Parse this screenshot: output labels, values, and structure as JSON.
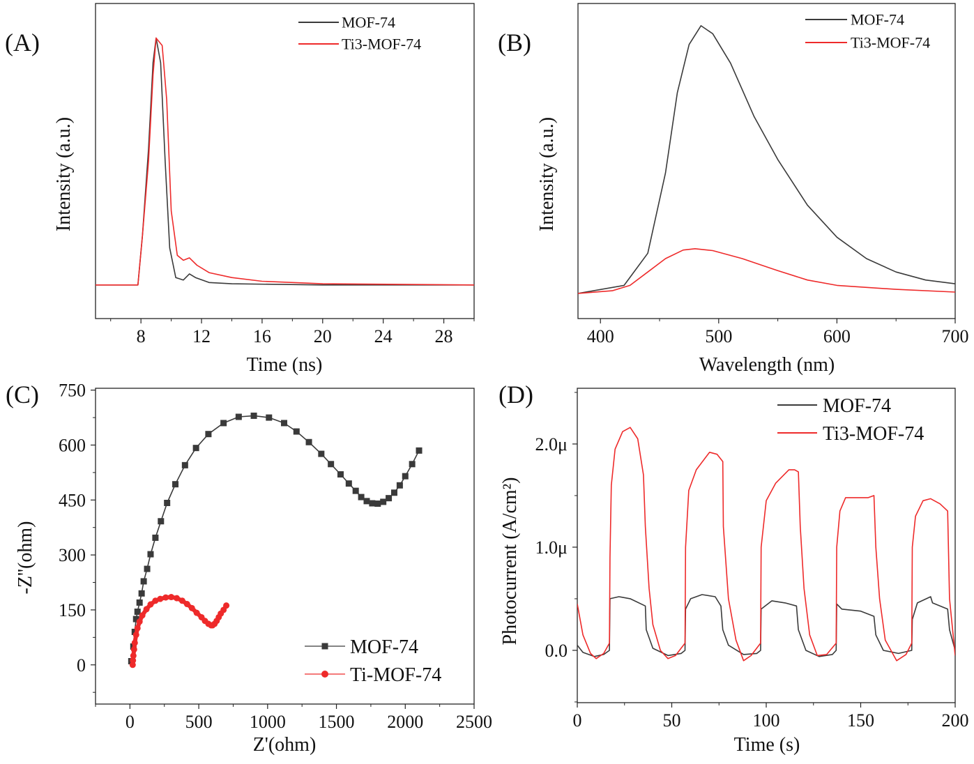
{
  "colors": {
    "mof": "#3a3a3a",
    "ti": "#ee2a2a",
    "axis": "#222222"
  },
  "chart_data": [
    {
      "id": "A",
      "type": "line",
      "panel_label": "(A)",
      "xlabel": "Time (ns)",
      "ylabel": "Intensity (a.u.)",
      "xlim": [
        5,
        30
      ],
      "ylim": [
        -0.136,
        1.14
      ],
      "xticks": [
        8,
        12,
        16,
        20,
        24,
        28
      ],
      "xtick_labels": [
        "8",
        "12",
        "16",
        "20",
        "24",
        "28"
      ],
      "xminor": [
        6,
        10,
        14,
        18,
        22,
        26,
        30
      ],
      "yticks": [],
      "ytick_labels": [],
      "legend": "top-right",
      "series": [
        {
          "name": "MOF-74",
          "color": "#3a3a3a",
          "marker": "none",
          "x": [
            5,
            7.8,
            8.1,
            8.5,
            8.8,
            9.0,
            9.3,
            9.6,
            9.9,
            10.3,
            10.8,
            11.2,
            11.6,
            12.5,
            14,
            20,
            30
          ],
          "y": [
            0,
            0,
            0.2,
            0.55,
            0.9,
            1.0,
            0.9,
            0.5,
            0.15,
            0.03,
            0.02,
            0.045,
            0.03,
            0.01,
            0.005,
            0,
            0
          ]
        },
        {
          "name": "Ti3-MOF-74",
          "color": "#ee2a2a",
          "marker": "none",
          "x": [
            5,
            7.8,
            8.1,
            8.5,
            8.8,
            9.0,
            9.4,
            9.7,
            10.0,
            10.4,
            10.8,
            11.2,
            11.7,
            12.5,
            14,
            16,
            20,
            30
          ],
          "y": [
            0,
            0,
            0.2,
            0.5,
            0.85,
            1.0,
            0.97,
            0.75,
            0.3,
            0.12,
            0.1,
            0.11,
            0.08,
            0.05,
            0.03,
            0.015,
            0.005,
            0
          ]
        }
      ]
    },
    {
      "id": "B",
      "type": "line",
      "panel_label": "(B)",
      "xlabel": "Wavelength (nm)",
      "ylabel": "Intensity (a.u.)",
      "xlim": [
        381,
        700
      ],
      "ylim": [
        -0.094,
        1.083
      ],
      "xticks": [
        400,
        500,
        600,
        700
      ],
      "xtick_labels": [
        "400",
        "500",
        "600",
        "700"
      ],
      "xminor": [
        450,
        550,
        650
      ],
      "yticks": [],
      "ytick_labels": [],
      "legend": "top-right",
      "series": [
        {
          "name": "MOF-74",
          "color": "#3a3a3a",
          "marker": "none",
          "x": [
            381,
            420,
            440,
            455,
            465,
            475,
            485,
            495,
            510,
            530,
            550,
            575,
            600,
            625,
            650,
            675,
            700
          ],
          "y": [
            0,
            0.03,
            0.15,
            0.45,
            0.75,
            0.93,
            1.0,
            0.97,
            0.86,
            0.66,
            0.5,
            0.33,
            0.21,
            0.13,
            0.08,
            0.05,
            0.036
          ]
        },
        {
          "name": "Ti3-MOF-74",
          "color": "#ee2a2a",
          "marker": "none",
          "x": [
            381,
            410,
            425,
            440,
            455,
            470,
            480,
            495,
            520,
            550,
            575,
            600,
            650,
            700
          ],
          "y": [
            0,
            0.01,
            0.03,
            0.08,
            0.13,
            0.162,
            0.167,
            0.16,
            0.13,
            0.085,
            0.05,
            0.03,
            0.015,
            0.005
          ]
        }
      ]
    },
    {
      "id": "C",
      "type": "scatter",
      "panel_label": "(C)",
      "xlabel": "Z'(ohm)",
      "ylabel": "-Z''(ohm)",
      "xlim": [
        -250,
        2500
      ],
      "ylim": [
        -107,
        755
      ],
      "xticks": [
        0,
        500,
        1000,
        1500,
        2000,
        2500
      ],
      "xtick_labels": [
        "0",
        "500",
        "1000",
        "1500",
        "2000",
        "2500"
      ],
      "xminor": [
        -250,
        250,
        750,
        1250,
        1750,
        2250
      ],
      "yticks": [
        0,
        150,
        300,
        450,
        600,
        750
      ],
      "ytick_labels": [
        "0",
        "150",
        "300",
        "450",
        "600",
        "750"
      ],
      "yminor": [
        -75,
        75,
        225,
        375,
        525,
        675
      ],
      "legend": "bottom-right",
      "series": [
        {
          "name": "MOF-74",
          "color": "#3a3a3a",
          "marker": "square",
          "x": [
            10,
            25,
            35,
            45,
            55,
            70,
            85,
            100,
            125,
            150,
            185,
            225,
            270,
            330,
            400,
            480,
            570,
            680,
            790,
            900,
            1010,
            1120,
            1210,
            1300,
            1390,
            1460,
            1530,
            1590,
            1640,
            1680,
            1720,
            1760,
            1800,
            1840,
            1880,
            1920,
            1960,
            2000,
            2050,
            2100
          ],
          "y": [
            10,
            50,
            90,
            125,
            145,
            170,
            195,
            228,
            262,
            302,
            347,
            392,
            442,
            493,
            545,
            592,
            630,
            660,
            677,
            680,
            675,
            660,
            637,
            608,
            576,
            548,
            520,
            495,
            475,
            458,
            447,
            441,
            440,
            445,
            455,
            470,
            490,
            515,
            548,
            585
          ]
        },
        {
          "name": "Ti-MOF-74",
          "color": "#ee2a2a",
          "marker": "circle",
          "x": [
            20,
            22,
            25,
            30,
            35,
            45,
            55,
            70,
            90,
            120,
            150,
            185,
            220,
            260,
            300,
            340,
            380,
            415,
            450,
            485,
            520,
            545,
            570,
            590,
            600,
            615,
            630,
            645,
            660,
            680,
            700
          ],
          "y": [
            0,
            12,
            25,
            42,
            60,
            82,
            100,
            118,
            135,
            152,
            165,
            175,
            180,
            184,
            185,
            182,
            175,
            166,
            155,
            142,
            130,
            120,
            112,
            108,
            108,
            112,
            120,
            130,
            140,
            150,
            162
          ]
        }
      ]
    },
    {
      "id": "D",
      "type": "line",
      "panel_label": "(D)",
      "xlabel": "Time (s)",
      "ylabel": "Photocurrent (A/cm²)",
      "xlim": [
        0,
        200
      ],
      "ylim": [
        -0.507,
        2.54
      ],
      "xticks": [
        0,
        50,
        100,
        150,
        200
      ],
      "xtick_labels": [
        "0",
        "50",
        "100",
        "150",
        "200"
      ],
      "xminor": [
        25,
        75,
        125,
        175
      ],
      "yticks": [
        0,
        1.0,
        2.0
      ],
      "ytick_labels": [
        "0.0",
        "1.0μ",
        "2.0μ"
      ],
      "yminor": [
        -0.5,
        0.5,
        1.5,
        2.5
      ],
      "legend": "top-right",
      "series": [
        {
          "name": "MOF-74",
          "color": "#3a3a3a",
          "marker": "none",
          "x": [
            0,
            3,
            9,
            14,
            17,
            17.3,
            22,
            28,
            36,
            36.5,
            40,
            48,
            55,
            57,
            57.3,
            60,
            66,
            73,
            76,
            77,
            80,
            88,
            95,
            97,
            97.3,
            103,
            110,
            116,
            117,
            121,
            128,
            135,
            137,
            137.3,
            140,
            150,
            157,
            158,
            162,
            170,
            177,
            177.3,
            180,
            187,
            188,
            196,
            197,
            200
          ],
          "y": [
            0.05,
            -0.02,
            -0.06,
            -0.04,
            0,
            0.5,
            0.52,
            0.5,
            0.43,
            0.2,
            0.02,
            -0.05,
            -0.03,
            0,
            0.4,
            0.5,
            0.54,
            0.52,
            0.43,
            0.2,
            0.05,
            -0.04,
            -0.03,
            0,
            0.4,
            0.48,
            0.46,
            0.43,
            0.2,
            0,
            -0.06,
            -0.04,
            0,
            0.45,
            0.4,
            0.38,
            0.33,
            0.15,
            0,
            -0.03,
            0,
            0.3,
            0.46,
            0.52,
            0.46,
            0.4,
            0.2,
            0
          ]
        },
        {
          "name": "Ti3-MOF-74",
          "color": "#ee2a2a",
          "marker": "none",
          "x": [
            0,
            3,
            7,
            10,
            14,
            17,
            17.3,
            18,
            20,
            24,
            28,
            32,
            35,
            36,
            38,
            40,
            44,
            48,
            52,
            57,
            57.3,
            59,
            63,
            70,
            74,
            77,
            77.3,
            80,
            84,
            88,
            92,
            97,
            97.3,
            100,
            105,
            112,
            115,
            117,
            118,
            120,
            123,
            127,
            132,
            137,
            137.3,
            139,
            142,
            147,
            154,
            157,
            158,
            160,
            163,
            169,
            174,
            177,
            177.3,
            179,
            183,
            187,
            192,
            196,
            197,
            200
          ],
          "y": [
            0.45,
            0.15,
            -0.03,
            -0.08,
            -0.03,
            0.07,
            0.9,
            1.6,
            1.95,
            2.12,
            2.16,
            2.05,
            1.7,
            1.2,
            0.6,
            0.25,
            0,
            -0.08,
            -0.05,
            0.07,
            1.0,
            1.55,
            1.75,
            1.92,
            1.9,
            1.83,
            1.2,
            0.5,
            0.1,
            -0.1,
            -0.05,
            0.07,
            1.0,
            1.45,
            1.62,
            1.75,
            1.75,
            1.73,
            1.2,
            0.6,
            0.15,
            -0.05,
            -0.04,
            0.07,
            1.0,
            1.35,
            1.48,
            1.48,
            1.48,
            1.5,
            1.0,
            0.5,
            0.1,
            -0.1,
            -0.04,
            0.07,
            1.0,
            1.3,
            1.45,
            1.47,
            1.42,
            1.35,
            0.5,
            -0.05
          ]
        }
      ]
    }
  ]
}
